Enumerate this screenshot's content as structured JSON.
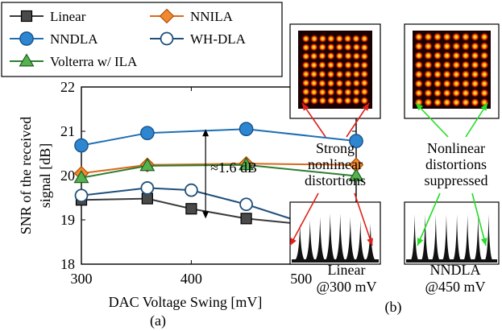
{
  "legend": {
    "items": [
      {
        "label": "Linear",
        "color": "#3a3a3a",
        "marker": "square-filled"
      },
      {
        "label": "NNILA",
        "color": "#d96a1a",
        "marker": "diamond-filled"
      },
      {
        "label": "NNDLA",
        "color": "#1f6fb4",
        "marker": "circle-filled"
      },
      {
        "label": "WH-DLA",
        "color": "#1f4f7a",
        "marker": "circle-open"
      },
      {
        "label": "Volterra w/ ILA",
        "color": "#2e7d32",
        "marker": "triangle-filled"
      }
    ]
  },
  "chart_data": {
    "type": "line",
    "xlabel": "DAC Voltage Swing [mV]",
    "ylabel_line1": "SNR of the received",
    "ylabel_line2": "signal [dB]",
    "xlim": [
      300,
      550
    ],
    "ylim": [
      18,
      22
    ],
    "xticks": [
      300,
      400,
      500
    ],
    "yticks": [
      18,
      19,
      20,
      21,
      22
    ],
    "grid": false,
    "series": [
      {
        "name": "Linear",
        "color": "#3a3a3a",
        "marker": "square-filled",
        "x": [
          300,
          360,
          400,
          450,
          550
        ],
        "y": [
          19.45,
          19.48,
          19.25,
          19.03,
          18.78
        ]
      },
      {
        "name": "NNILA",
        "color": "#d96a1a",
        "marker": "diamond-filled",
        "x": [
          300,
          360,
          450,
          550
        ],
        "y": [
          20.05,
          20.24,
          20.27,
          20.24
        ]
      },
      {
        "name": "NNDLA",
        "color": "#1f6fb4",
        "marker": "circle-filled",
        "x": [
          300,
          360,
          450,
          550
        ],
        "y": [
          20.68,
          20.96,
          21.05,
          20.78
        ]
      },
      {
        "name": "WH-DLA",
        "color": "#1f4f7a",
        "marker": "circle-open",
        "x": [
          300,
          360,
          400,
          450,
          500
        ],
        "y": [
          19.55,
          19.72,
          19.67,
          19.35,
          18.95
        ]
      },
      {
        "name": "Volterra w/ ILA",
        "color": "#2e7d32",
        "marker": "triangle-filled",
        "x": [
          300,
          360,
          450,
          550
        ],
        "y": [
          19.95,
          20.22,
          20.24,
          19.99
        ]
      }
    ],
    "annotation": {
      "text": "≈1.6 dB",
      "x": 435,
      "y_top": 21.05,
      "y_bottom": 19.03
    }
  },
  "panel_a_label": "(a)",
  "panel_b_label": "(b)",
  "text_left_1": "Strong",
  "text_left_2": "nonlinear",
  "text_left_3": "distortions",
  "text_right_1": "Nonlinear",
  "text_right_2": "distortions",
  "text_right_3": "suppressed",
  "caption_left_1": "Linear",
  "caption_left_2": "@300 mV",
  "caption_right_1": "NNDLA",
  "caption_right_2": "@450 mV"
}
